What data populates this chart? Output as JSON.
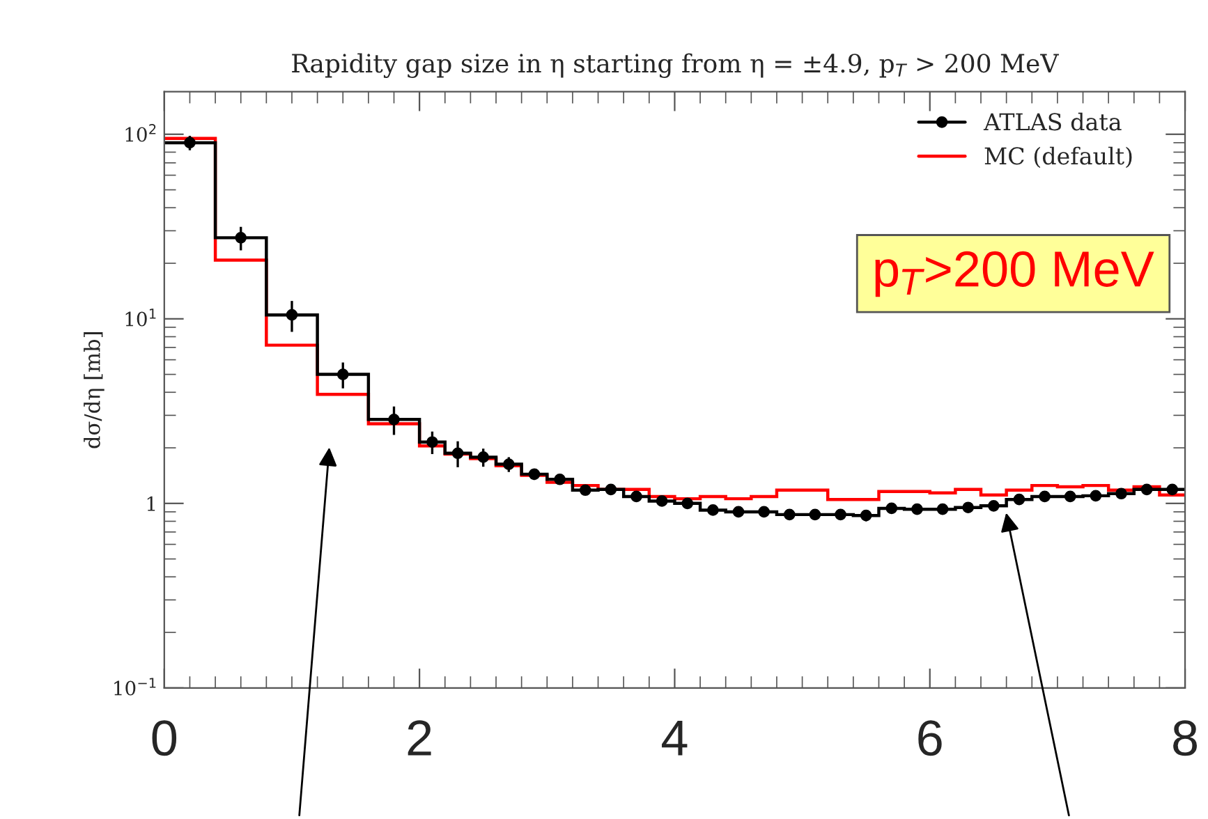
{
  "chart_data": {
    "type": "histogram",
    "title": "Rapidity gap size in η starting from η = ±4.9, p$_{T}$ > 200 MeV",
    "ylabel": "dσ/dη [mb]",
    "bins": [
      0,
      0.4,
      0.8,
      1.2,
      1.6,
      2.0,
      2.2,
      2.4,
      2.6,
      2.8,
      3.0,
      3.2,
      3.4,
      3.6,
      3.8,
      4.0,
      4.2,
      4.4,
      4.6,
      4.8,
      5.0,
      5.2,
      5.4,
      5.6,
      5.8,
      6.0,
      6.2,
      6.4,
      6.6,
      6.8,
      7.0,
      7.2,
      7.4,
      7.6,
      7.8,
      8.0
    ],
    "series": [
      {
        "color": "#000000",
        "values": [
          90,
          27.5,
          10.5,
          5.0,
          2.85,
          2.15,
          1.87,
          1.78,
          1.63,
          1.44,
          1.35,
          1.18,
          1.19,
          1.09,
          1.03,
          1.0,
          0.92,
          0.9,
          0.9,
          0.87,
          0.87,
          0.87,
          0.86,
          0.94,
          0.93,
          0.93,
          0.95,
          0.97,
          1.05,
          1.09,
          1.09,
          1.1,
          1.13,
          1.19,
          1.19
        ]
      },
      {
        "name": "ATLAS data",
        "type": "scatter",
        "color": "#000000",
        "marker": "circle",
        "x": [
          0.2,
          0.6,
          1.0,
          1.4,
          1.8,
          2.1,
          2.3,
          2.5,
          2.7,
          2.9,
          3.1,
          3.3,
          3.5,
          3.7,
          3.9,
          4.1,
          4.3,
          4.5,
          4.7,
          4.9,
          5.1,
          5.3,
          5.5,
          5.7,
          5.9,
          6.1,
          6.3,
          6.5,
          6.7,
          6.9,
          7.1,
          7.3,
          7.5,
          7.7,
          7.9
        ],
        "values": [
          90,
          27.5,
          10.5,
          5.0,
          2.85,
          2.15,
          1.87,
          1.78,
          1.63,
          1.44,
          1.35,
          1.18,
          1.19,
          1.09,
          1.03,
          1.0,
          0.92,
          0.9,
          0.9,
          0.87,
          0.87,
          0.87,
          0.86,
          0.94,
          0.93,
          0.93,
          0.95,
          0.97,
          1.05,
          1.09,
          1.09,
          1.1,
          1.13,
          1.19,
          1.19
        ],
        "errors": [
          8,
          4,
          2,
          0.8,
          0.5,
          0.3,
          0.3,
          0.2,
          0.15,
          0.1,
          0.08,
          0.06,
          0.06,
          0.05,
          0.05,
          0.05,
          0.05,
          0.05,
          0.05,
          0.05,
          0.05,
          0.05,
          0.06,
          0.05,
          0.05,
          0.05,
          0.05,
          0.05,
          0.05,
          0.05,
          0.05,
          0.05,
          0.05,
          0.05,
          0.05
        ]
      },
      {
        "name": "MC (default)",
        "color": "#ff0000",
        "values": [
          95,
          20.8,
          7.2,
          3.9,
          2.7,
          2.05,
          1.85,
          1.75,
          1.6,
          1.42,
          1.3,
          1.25,
          1.19,
          1.19,
          1.09,
          1.06,
          1.09,
          1.06,
          1.09,
          1.18,
          1.18,
          1.05,
          1.05,
          1.16,
          1.16,
          1.14,
          1.19,
          1.11,
          1.18,
          1.25,
          1.23,
          1.25,
          1.18,
          1.23,
          1.11
        ]
      }
    ],
    "log": "y",
    "xlim": [
      0,
      8
    ],
    "xticks": [
      0,
      2,
      4,
      6,
      8
    ],
    "ylim": [
      0.1,
      170
    ],
    "yticks": [
      {
        "value": 0.1,
        "label": "10$^{−1}$"
      },
      {
        "value": 1,
        "label": "1"
      },
      {
        "value": 10,
        "label": "10$^{1}$"
      },
      {
        "value": 100,
        "label": "10$^{2}$"
      }
    ],
    "legend": "top right",
    "grid": false,
    "annotations": [
      "p$_{T}$>200 MeV"
    ]
  }
}
